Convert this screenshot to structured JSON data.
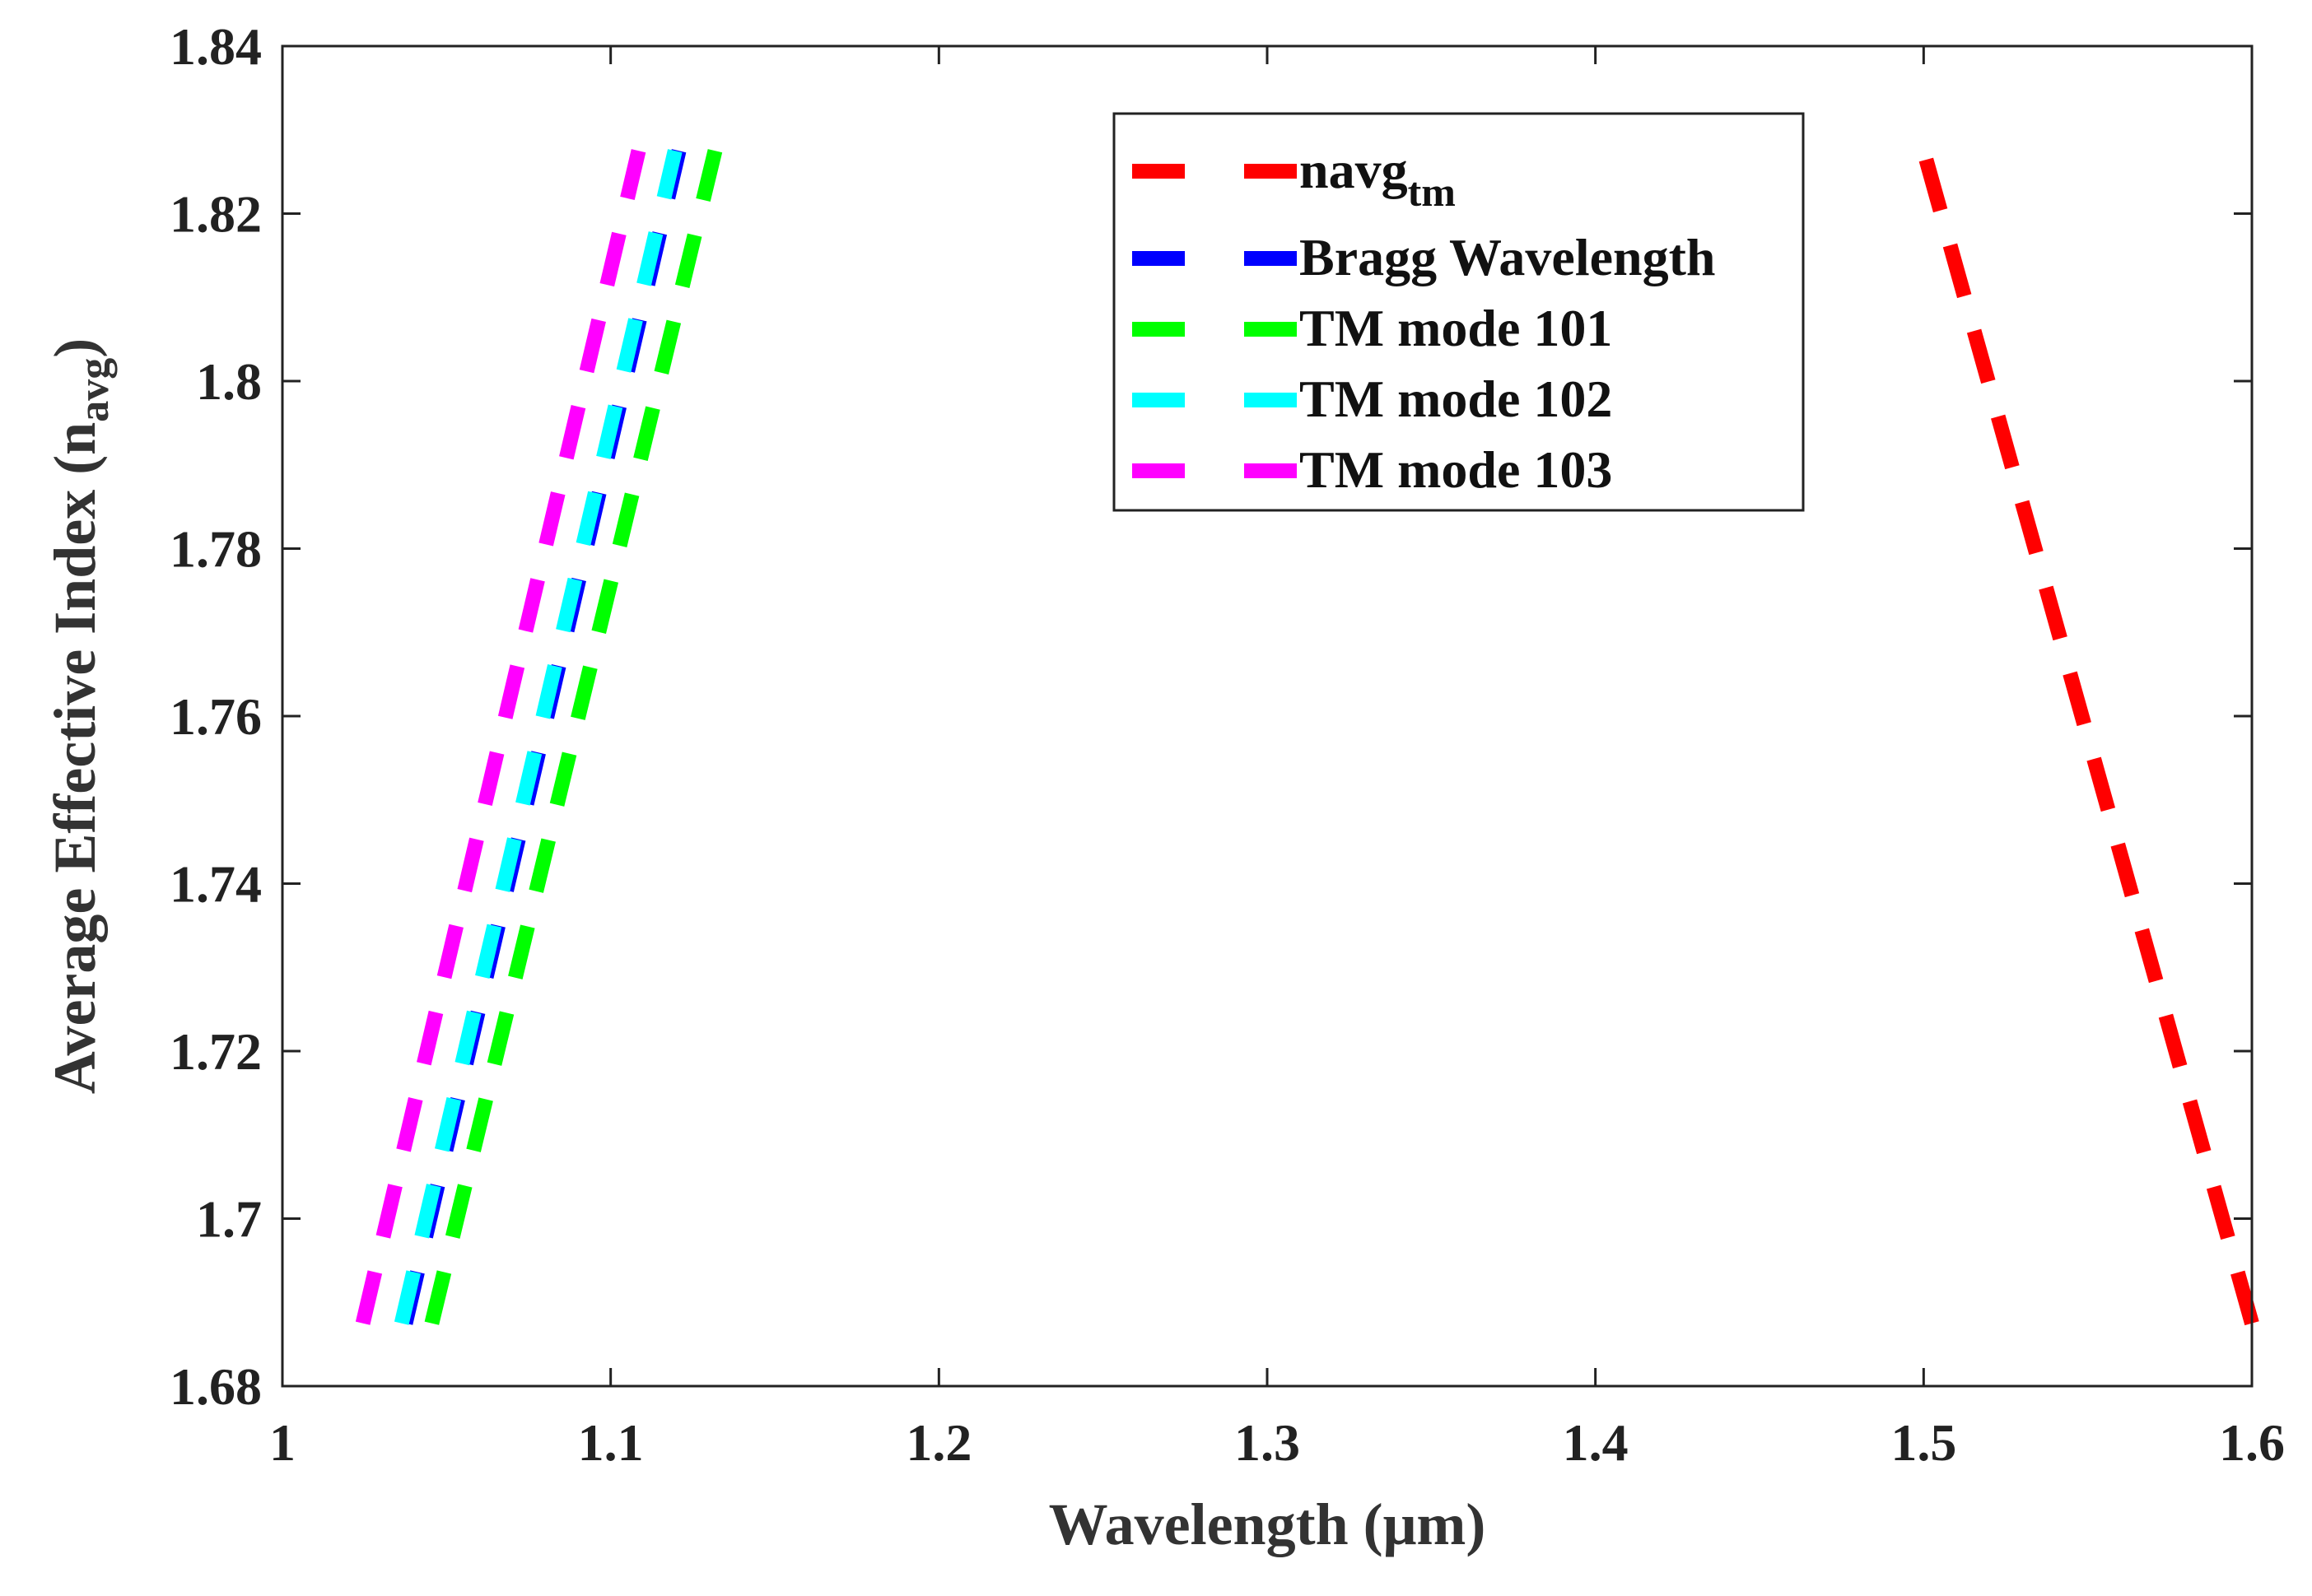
{
  "chart_data": {
    "type": "line",
    "title": "",
    "xlabel": "Wavelength (μm)",
    "ylabel": {
      "main": "Average Effective Index (n",
      "sub": "avg",
      "close": ")"
    },
    "xlim": [
      1,
      1.6
    ],
    "ylim": [
      1.68,
      1.84
    ],
    "xticks": [
      {
        "value": 1,
        "label": "1"
      },
      {
        "value": 1.1,
        "label": "1.1"
      },
      {
        "value": 1.2,
        "label": "1.2"
      },
      {
        "value": 1.3,
        "label": "1.3"
      },
      {
        "value": 1.4,
        "label": "1.4"
      },
      {
        "value": 1.5,
        "label": "1.5"
      },
      {
        "value": 1.6,
        "label": "1.6"
      }
    ],
    "yticks": [
      {
        "value": 1.68,
        "label": "1.68"
      },
      {
        "value": 1.7,
        "label": "1.7"
      },
      {
        "value": 1.72,
        "label": "1.72"
      },
      {
        "value": 1.74,
        "label": "1.74"
      },
      {
        "value": 1.76,
        "label": "1.76"
      },
      {
        "value": 1.78,
        "label": "1.78"
      },
      {
        "value": 1.8,
        "label": "1.8"
      },
      {
        "value": 1.82,
        "label": "1.82"
      },
      {
        "value": 1.84,
        "label": "1.84"
      }
    ],
    "grid": false,
    "legend_position": "top-right",
    "series": [
      {
        "name": "navg",
        "name_sub": "tm",
        "color": "#ff0000",
        "x": [
          1.6,
          1.5
        ],
        "y": [
          1.6875,
          1.8275
        ]
      },
      {
        "name": "Bragg Wavelength",
        "color": "#0000ff",
        "x": [
          1.0375,
          1.1208
        ],
        "y": [
          1.6875,
          1.8275
        ]
      },
      {
        "name": " TM mode 101",
        "color": "#00ff00",
        "x": [
          1.0455,
          1.1318
        ],
        "y": [
          1.6875,
          1.8275
        ]
      },
      {
        "name": "TM mode 102",
        "color": "#00ffff",
        "x": [
          1.0363,
          1.1196
        ],
        "y": [
          1.6875,
          1.8275
        ]
      },
      {
        "name": "TM mode 103",
        "color": "#ff00ff",
        "x": [
          1.0245,
          1.1085
        ],
        "y": [
          1.6875,
          1.8275
        ]
      }
    ]
  }
}
